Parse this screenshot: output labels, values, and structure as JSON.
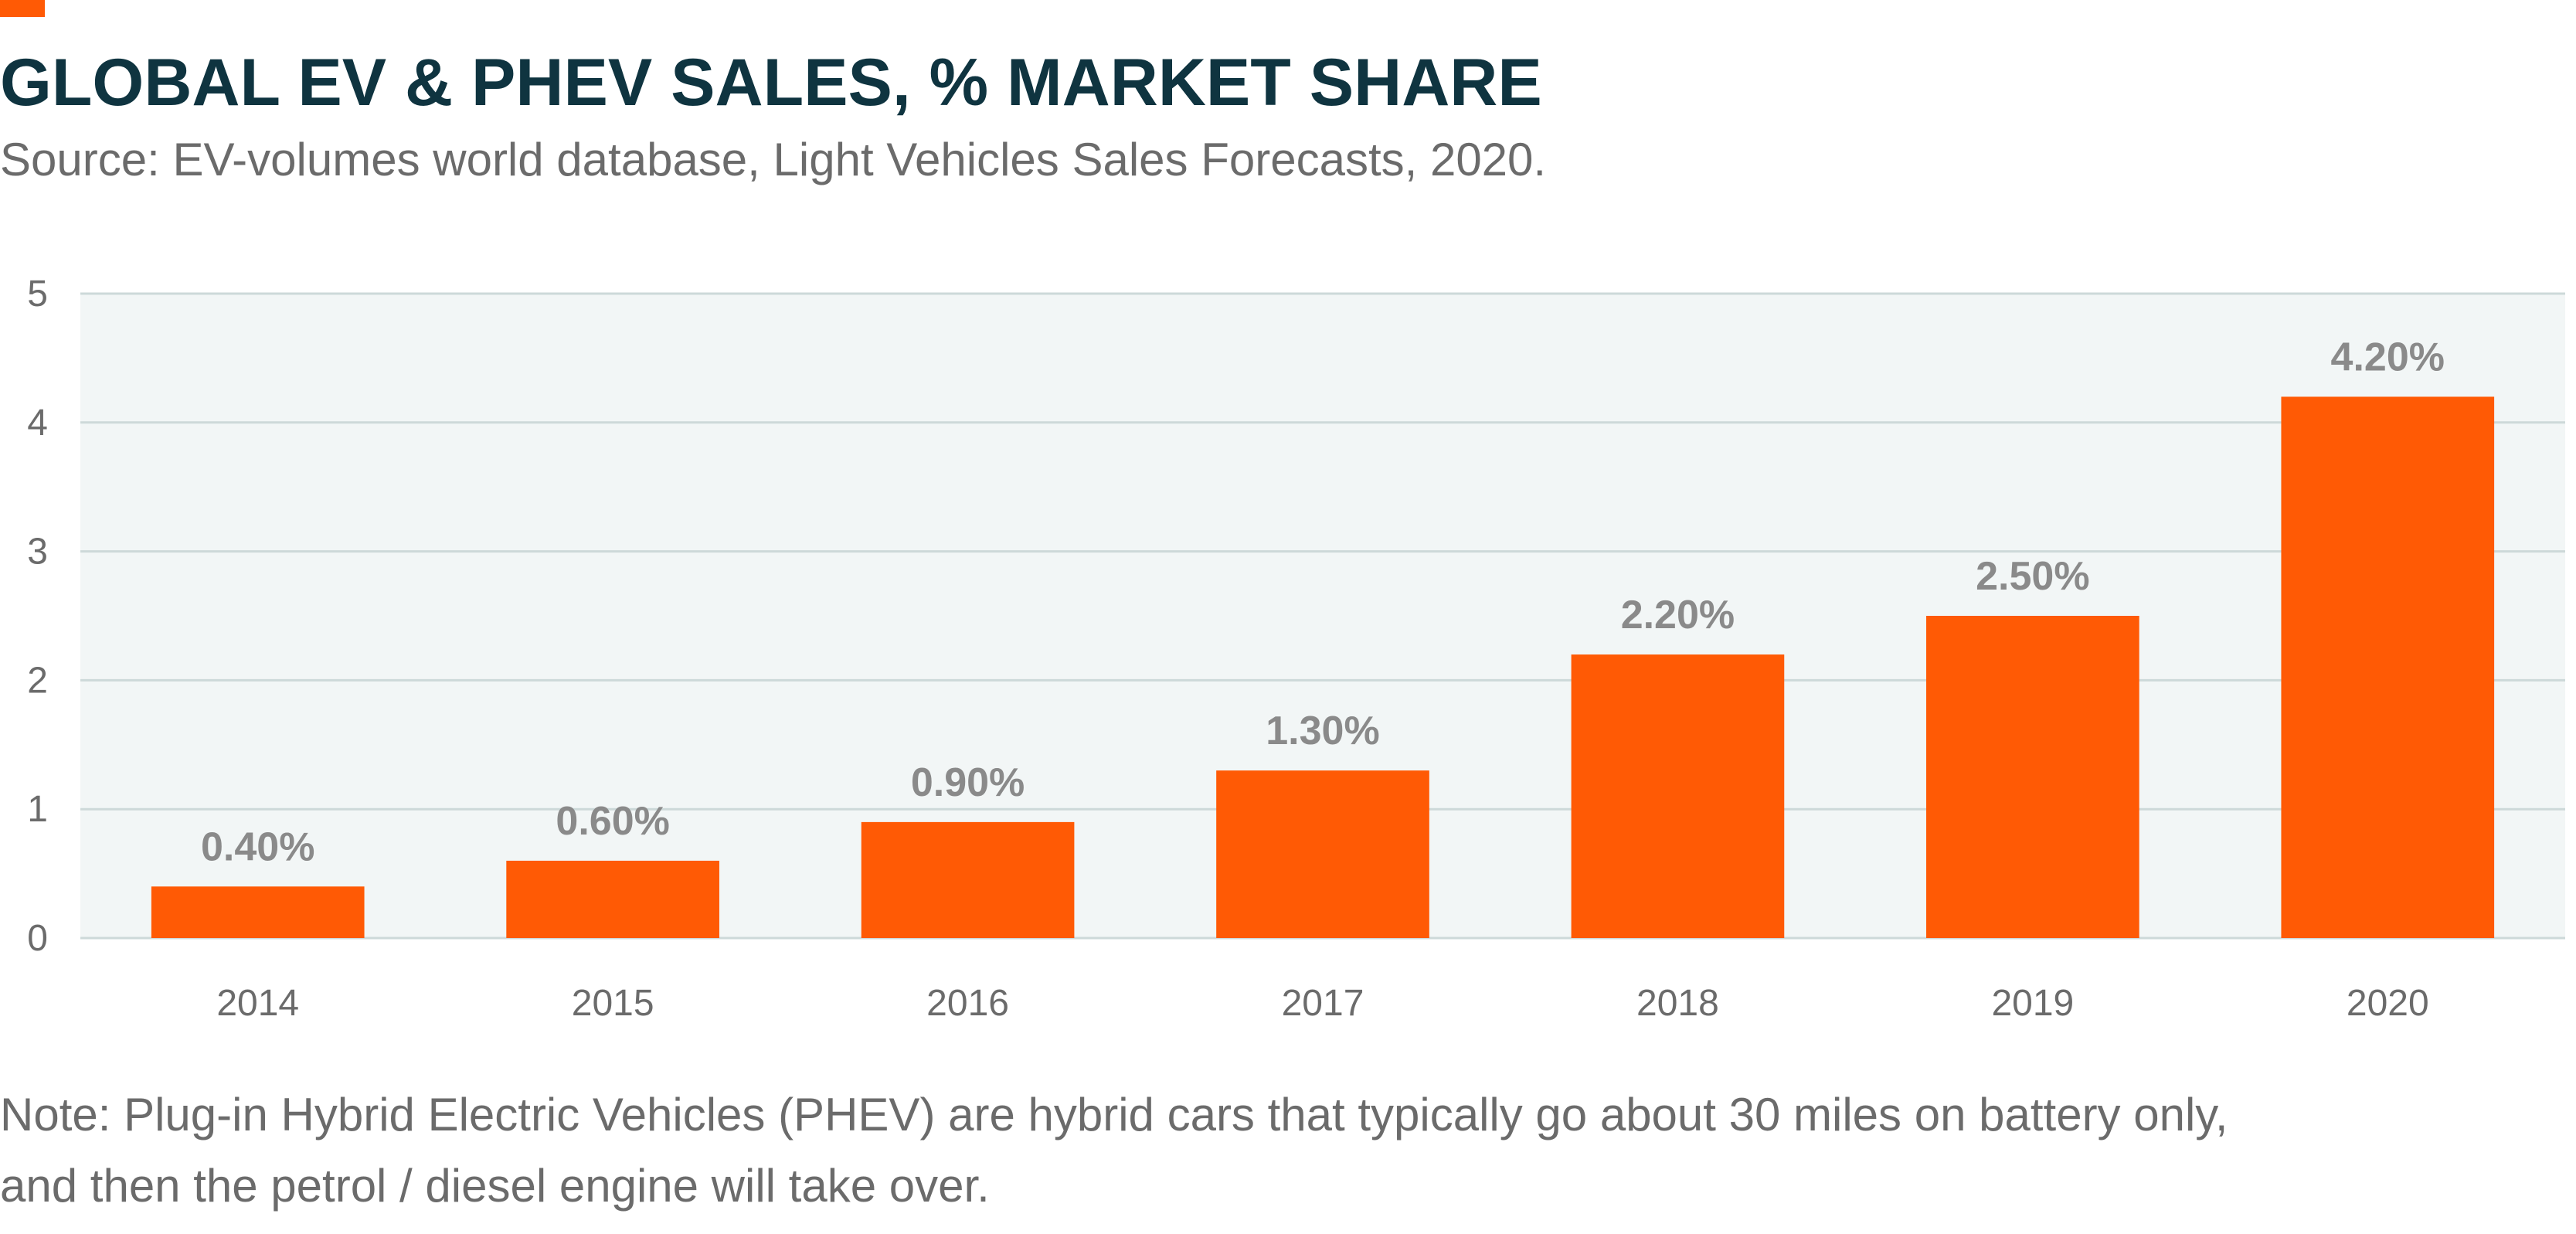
{
  "colors": {
    "accent": "#ff5a05",
    "title": "#0f3440",
    "text": "#6b6b6b",
    "plot_background": "#f2f6f6",
    "gridline": "#cdd9d9",
    "data_label": "#8a8a8a"
  },
  "header": {
    "title": "GLOBAL EV & PHEV SALES, % MARKET SHARE",
    "subtitle": "Source: EV-volumes world database, Light Vehicles Sales Forecasts, 2020."
  },
  "footer": {
    "note_line_1": "Note: Plug-in Hybrid Electric Vehicles (PHEV) are hybrid cars that typically go about 30 miles on battery only,",
    "note_line_2": "and then the petrol / diesel engine will take over."
  },
  "chart_data": {
    "type": "bar",
    "title": "GLOBAL EV & PHEV SALES, % MARKET SHARE",
    "subtitle": "Source: EV-volumes world database, Light Vehicles Sales Forecasts, 2020.",
    "xlabel": "",
    "ylabel": "",
    "categories": [
      "2014",
      "2015",
      "2016",
      "2017",
      "2018",
      "2019",
      "2020"
    ],
    "values": [
      0.4,
      0.6,
      0.9,
      1.3,
      2.2,
      2.5,
      4.2
    ],
    "data_labels": [
      "0.40%",
      "0.60%",
      "0.90%",
      "1.30%",
      "2.20%",
      "2.50%",
      "4.20%"
    ],
    "ylim": [
      0,
      5
    ],
    "yticks": [
      "0",
      "1",
      "2",
      "3",
      "4",
      "5"
    ],
    "grid": true,
    "legend": "none",
    "bar_color": "#ff5a05"
  }
}
